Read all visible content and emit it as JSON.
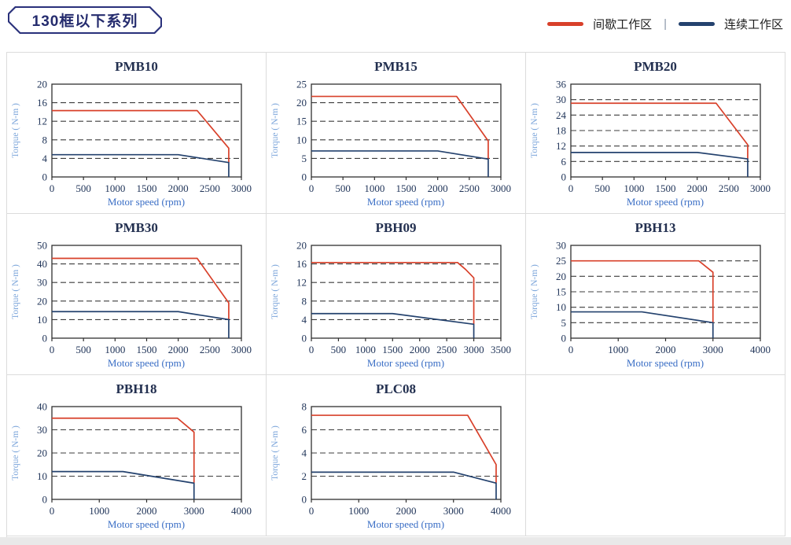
{
  "page": {
    "badge": "130框以下系列",
    "legend": {
      "intermittent_label": "间歇工作区",
      "separator": "|",
      "continuous_label": "连续工作区"
    }
  },
  "colors": {
    "intermittent": "#D8402A",
    "continuous": "#24426E",
    "grid": "#3C3C3C",
    "axis": "#2F2F2F"
  },
  "chart_data": [
    {
      "type": "line",
      "title": "PMB10",
      "xlabel": "Motor speed (rpm)",
      "ylabel": "Torque ( N-m )",
      "xlim": [
        0,
        3000
      ],
      "xtick_step": 500,
      "ylim": [
        0,
        20
      ],
      "ytick_step": 4,
      "grid": "dashed-horizontal",
      "legend_position": "none",
      "series": [
        {
          "name": "间歇工作区",
          "color": "intermittent",
          "points": [
            [
              0,
              14.3
            ],
            [
              2300,
              14.3
            ],
            [
              2800,
              6.2
            ],
            [
              2800,
              3.1
            ]
          ]
        },
        {
          "name": "连续工作区",
          "color": "continuous",
          "points": [
            [
              0,
              4.8
            ],
            [
              2000,
              4.8
            ],
            [
              2800,
              3.1
            ],
            [
              2800,
              0
            ]
          ]
        }
      ]
    },
    {
      "type": "line",
      "title": "PMB15",
      "xlabel": "Motor speed (rpm)",
      "ylabel": "Torque ( N-m )",
      "xlim": [
        0,
        3000
      ],
      "xtick_step": 500,
      "ylim": [
        0,
        25
      ],
      "ytick_step": 5,
      "grid": "dashed-horizontal",
      "legend_position": "none",
      "series": [
        {
          "name": "间歇工作区",
          "color": "intermittent",
          "points": [
            [
              0,
              21.7
            ],
            [
              2300,
              21.7
            ],
            [
              2800,
              9.7
            ],
            [
              2800,
              4.8
            ]
          ]
        },
        {
          "name": "连续工作区",
          "color": "continuous",
          "points": [
            [
              0,
              7
            ],
            [
              2000,
              7
            ],
            [
              2800,
              4.8
            ],
            [
              2800,
              0
            ]
          ]
        }
      ]
    },
    {
      "type": "line",
      "title": "PMB20",
      "xlabel": "Motor speed (rpm)",
      "ylabel": "Torque ( N-m )",
      "xlim": [
        0,
        3000
      ],
      "xtick_step": 500,
      "ylim": [
        0,
        36
      ],
      "ytick_step": 6,
      "grid": "dashed-horizontal",
      "legend_position": "none",
      "series": [
        {
          "name": "间歇工作区",
          "color": "intermittent",
          "points": [
            [
              0,
              28.6
            ],
            [
              2300,
              28.6
            ],
            [
              2800,
              12.5
            ],
            [
              2800,
              7
            ]
          ]
        },
        {
          "name": "连续工作区",
          "color": "continuous",
          "points": [
            [
              0,
              9.5
            ],
            [
              2000,
              9.5
            ],
            [
              2800,
              7
            ],
            [
              2800,
              0
            ]
          ]
        }
      ]
    },
    {
      "type": "line",
      "title": "PMB30",
      "xlabel": "Motor speed (rpm)",
      "ylabel": "Torque ( N-m )",
      "xlim": [
        0,
        3000
      ],
      "xtick_step": 500,
      "ylim": [
        0,
        50
      ],
      "ytick_step": 10,
      "grid": "dashed-horizontal",
      "legend_position": "none",
      "series": [
        {
          "name": "间歇工作区",
          "color": "intermittent",
          "points": [
            [
              0,
              43
            ],
            [
              2300,
              43
            ],
            [
              2800,
              19
            ],
            [
              2800,
              10
            ]
          ]
        },
        {
          "name": "连续工作区",
          "color": "continuous",
          "points": [
            [
              0,
              14.3
            ],
            [
              2000,
              14.3
            ],
            [
              2800,
              10
            ],
            [
              2800,
              0
            ]
          ]
        }
      ]
    },
    {
      "type": "line",
      "title": "PBH09",
      "xlabel": "Motor speed (rpm)",
      "ylabel": "Torque ( N-m )",
      "xlim": [
        0,
        3500
      ],
      "xtick_step": 500,
      "ylim": [
        0,
        20
      ],
      "ytick_step": 4,
      "grid": "dashed-horizontal",
      "legend_position": "none",
      "series": [
        {
          "name": "间歇工作区",
          "color": "intermittent",
          "points": [
            [
              0,
              16.3
            ],
            [
              2700,
              16.3
            ],
            [
              2850,
              14.8
            ],
            [
              3000,
              13
            ],
            [
              3000,
              3
            ]
          ]
        },
        {
          "name": "连续工作区",
          "color": "continuous",
          "points": [
            [
              0,
              5.3
            ],
            [
              1500,
              5.3
            ],
            [
              3000,
              3
            ],
            [
              3000,
              0
            ]
          ]
        }
      ]
    },
    {
      "type": "line",
      "title": "PBH13",
      "xlabel": "Motor speed (rpm)",
      "ylabel": "Torque ( N-m )",
      "xlim": [
        0,
        4000
      ],
      "xtick_step": 1000,
      "ylim": [
        0,
        30
      ],
      "ytick_step": 5,
      "grid": "dashed-horizontal",
      "legend_position": "none",
      "series": [
        {
          "name": "间歇工作区",
          "color": "intermittent",
          "points": [
            [
              0,
              25
            ],
            [
              2700,
              25
            ],
            [
              3000,
              21.3
            ],
            [
              3000,
              5
            ]
          ]
        },
        {
          "name": "连续工作区",
          "color": "continuous",
          "points": [
            [
              0,
              8.5
            ],
            [
              1500,
              8.5
            ],
            [
              3000,
              5
            ],
            [
              3000,
              0
            ]
          ]
        }
      ]
    },
    {
      "type": "line",
      "title": "PBH18",
      "xlabel": "Motor speed (rpm)",
      "ylabel": "Torque ( N-m )",
      "xlim": [
        0,
        4000
      ],
      "xtick_step": 1000,
      "ylim": [
        0,
        40
      ],
      "ytick_step": 10,
      "grid": "dashed-horizontal",
      "legend_position": "none",
      "series": [
        {
          "name": "间歇工作区",
          "color": "intermittent",
          "points": [
            [
              0,
              35
            ],
            [
              2650,
              35
            ],
            [
              3000,
              29
            ],
            [
              3000,
              7
            ]
          ]
        },
        {
          "name": "连续工作区",
          "color": "continuous",
          "points": [
            [
              0,
              12
            ],
            [
              1500,
              12
            ],
            [
              3000,
              7
            ],
            [
              3000,
              0
            ]
          ]
        }
      ]
    },
    {
      "type": "line",
      "title": "PLC08",
      "xlabel": "Motor speed (rpm)",
      "ylabel": "Torque ( N-m )",
      "xlim": [
        0,
        4000
      ],
      "xtick_step": 1000,
      "ylim": [
        0,
        8
      ],
      "ytick_step": 2,
      "grid": "dashed-horizontal",
      "legend_position": "none",
      "series": [
        {
          "name": "间歇工作区",
          "color": "intermittent",
          "points": [
            [
              0,
              7.25
            ],
            [
              3300,
              7.25
            ],
            [
              3900,
              3
            ],
            [
              3900,
              1.4
            ]
          ]
        },
        {
          "name": "连续工作区",
          "color": "continuous",
          "points": [
            [
              0,
              2.35
            ],
            [
              3000,
              2.35
            ],
            [
              3900,
              1.4
            ],
            [
              3900,
              0
            ]
          ]
        }
      ]
    }
  ]
}
